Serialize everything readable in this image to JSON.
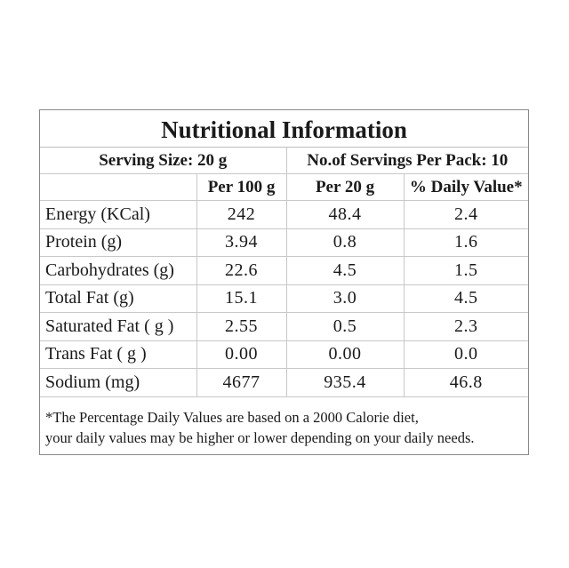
{
  "title": "Nutritional Information",
  "serving": {
    "size_label": "Serving Size: 20 g",
    "servings_label": "No.of Servings Per Pack: 10"
  },
  "columns": {
    "per100": "Per 100 g",
    "per20": "Per 20 g",
    "dv": "% Daily Value*"
  },
  "rows": [
    {
      "label": "Energy (KCal)",
      "per100": "242",
      "per20": "48.4",
      "dv": "2.4"
    },
    {
      "label": "Protein (g)",
      "per100": "3.94",
      "per20": "0.8",
      "dv": "1.6"
    },
    {
      "label": "Carbohydrates (g)",
      "per100": "22.6",
      "per20": "4.5",
      "dv": "1.5"
    },
    {
      "label": "Total Fat (g)",
      "per100": "15.1",
      "per20": "3.0",
      "dv": "4.5"
    },
    {
      "label": "Saturated Fat ( g )",
      "per100": "2.55",
      "per20": "0.5",
      "dv": "2.3"
    },
    {
      "label": "Trans Fat ( g )",
      "per100": "0.00",
      "per20": "0.00",
      "dv": "0.0"
    },
    {
      "label": "Sodium (mg)",
      "per100": "4677",
      "per20": "935.4",
      "dv": "46.8"
    }
  ],
  "footnote": {
    "line1": "*The Percentage Daily Values are based on a 2000 Calorie diet,",
    "line2": "your daily values may be higher or lower depending on your daily needs."
  }
}
